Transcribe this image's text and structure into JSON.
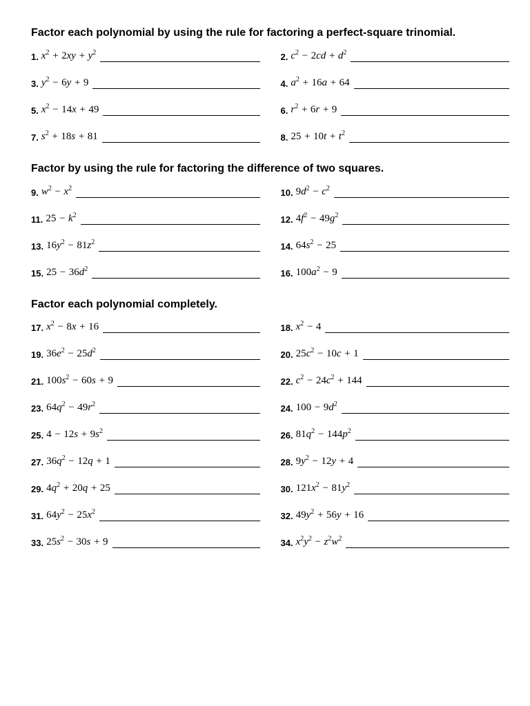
{
  "sections": [
    {
      "title": "Factor each polynomial by using the rule for factoring a perfect-square trinomial.",
      "problems": [
        {
          "n": "1.",
          "expr": "x² + 2xy + y²"
        },
        {
          "n": "2.",
          "expr": "c² − 2cd + d²"
        },
        {
          "n": "3.",
          "expr": "y² − 6y + 9"
        },
        {
          "n": "4.",
          "expr": "a² + 16a + 64"
        },
        {
          "n": "5.",
          "expr": "x² − 14x + 49"
        },
        {
          "n": "6.",
          "expr": "r² + 6r + 9"
        },
        {
          "n": "7.",
          "expr": "s² + 18s + 81"
        },
        {
          "n": "8.",
          "expr": "25 + 10t + t²"
        }
      ]
    },
    {
      "title": "Factor by using the rule for factoring the difference of two squares.",
      "problems": [
        {
          "n": "9.",
          "expr": "w² − x²"
        },
        {
          "n": "10.",
          "expr": "9d² − c²"
        },
        {
          "n": "11.",
          "expr": "25 − k²"
        },
        {
          "n": "12.",
          "expr": "4f² − 49g²"
        },
        {
          "n": "13.",
          "expr": "16y² − 81z²"
        },
        {
          "n": "14.",
          "expr": "64s² − 25"
        },
        {
          "n": "15.",
          "expr": "25 − 36d²"
        },
        {
          "n": "16.",
          "expr": "100a² − 9"
        }
      ]
    },
    {
      "title": "Factor each polynomial completely.",
      "problems": [
        {
          "n": "17.",
          "expr": "x² − 8x + 16"
        },
        {
          "n": "18.",
          "expr": "x² − 4"
        },
        {
          "n": "19.",
          "expr": "36e² − 25d²"
        },
        {
          "n": "20.",
          "expr": "25c² − 10c + 1"
        },
        {
          "n": "21.",
          "expr": "100s² − 60s + 9"
        },
        {
          "n": "22.",
          "expr": "c² − 24c² + 144"
        },
        {
          "n": "23.",
          "expr": "64q² − 49r²"
        },
        {
          "n": "24.",
          "expr": "100 − 9d²"
        },
        {
          "n": "25.",
          "expr": "4 − 12s + 9s²"
        },
        {
          "n": "26.",
          "expr": "81q² − 144p²"
        },
        {
          "n": "27.",
          "expr": "36q² − 12q + 1"
        },
        {
          "n": "28.",
          "expr": "9y² − 12y + 4"
        },
        {
          "n": "29.",
          "expr": "4q² + 20q + 25"
        },
        {
          "n": "30.",
          "expr": "121x² − 81y²"
        },
        {
          "n": "31.",
          "expr": "64y² − 25x²"
        },
        {
          "n": "32.",
          "expr": "49y² + 56y + 16"
        },
        {
          "n": "33.",
          "expr": "25s² − 30s + 9"
        },
        {
          "n": "34.",
          "expr": "x²y² − z²w²"
        }
      ]
    }
  ]
}
